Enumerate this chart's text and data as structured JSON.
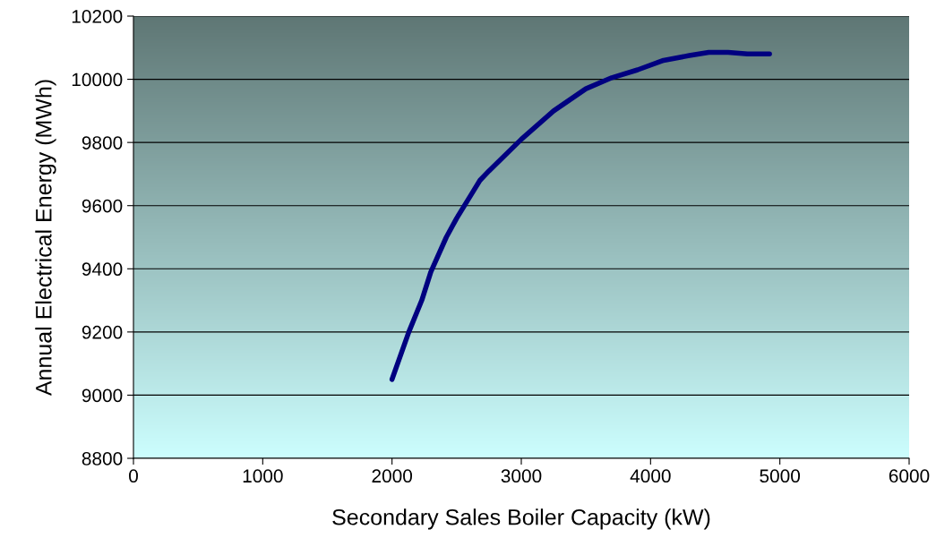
{
  "chart_data": {
    "type": "line",
    "xlabel": "Secondary Sales Boiler Capacity (kW)",
    "ylabel": "Annual Electrical Energy (MWh)",
    "x": [
      2000,
      2130,
      2230,
      2300,
      2420,
      2500,
      2620,
      2680,
      2750,
      3000,
      3250,
      3500,
      3700,
      3900,
      4100,
      4300,
      4450,
      4600,
      4750,
      4920
    ],
    "series": [
      {
        "color": "#000080",
        "values": [
          9050,
          9200,
          9300,
          9390,
          9500,
          9560,
          9640,
          9680,
          9710,
          9810,
          9900,
          9970,
          10005,
          10030,
          10060,
          10075,
          10085,
          10085,
          10080,
          10080
        ]
      }
    ],
    "xlim": [
      0,
      6000
    ],
    "xticks": [
      0,
      1000,
      2000,
      3000,
      4000,
      5000,
      6000
    ],
    "ylim": [
      8800,
      10200
    ],
    "yticks": [
      8800,
      9000,
      9200,
      9400,
      9600,
      9800,
      10000,
      10200
    ],
    "grid": "y",
    "legend": false,
    "marker": "none",
    "line_style": "solid"
  }
}
